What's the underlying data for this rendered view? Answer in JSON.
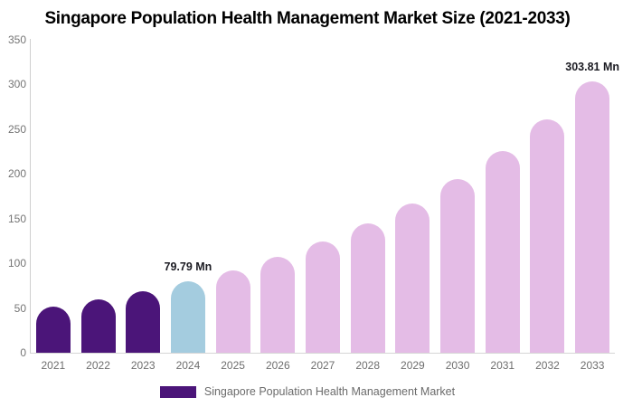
{
  "title": "Singapore Population Health Management Market Size (2021-2033)",
  "legend": {
    "label": "Singapore Population Health Management Market"
  },
  "chart_data": {
    "type": "bar",
    "title": "Singapore Population Health Management Market Size (2021-2033)",
    "categories": [
      "2021",
      "2022",
      "2023",
      "2024",
      "2025",
      "2026",
      "2027",
      "2028",
      "2029",
      "2030",
      "2031",
      "2032",
      "2033"
    ],
    "values": [
      51.1,
      59.3,
      68.8,
      79.79,
      92.5,
      107.4,
      124.0,
      144.6,
      167.3,
      194.2,
      225.3,
      261.0,
      303.81
    ],
    "unit": "Mn",
    "xlabel": "",
    "ylabel": "",
    "ylim": [
      0,
      350
    ],
    "yticks": [
      0,
      50,
      100,
      150,
      200,
      250,
      300,
      350
    ],
    "grid": false,
    "legend_position": "bottom",
    "annotations": [
      {
        "category": "2024",
        "text": "79.79 Mn"
      },
      {
        "category": "2033",
        "text": "303.81 Mn"
      }
    ],
    "color_keys": [
      "historical",
      "historical",
      "historical",
      "current",
      "forecast",
      "forecast",
      "forecast",
      "forecast",
      "forecast",
      "forecast",
      "forecast",
      "forecast",
      "forecast"
    ],
    "colors": {
      "historical": "#4B1579",
      "current": "#A4CCDF",
      "forecast": "#E4BCE6",
      "legend_swatch": "#4B1579",
      "axis_line": "#CFCFCF",
      "tick_label": "#757575",
      "legend_text": "#6B6B6B",
      "annotation_text": "#1B1B22",
      "title_text": "#000000",
      "background": "#FFFFFF"
    }
  }
}
